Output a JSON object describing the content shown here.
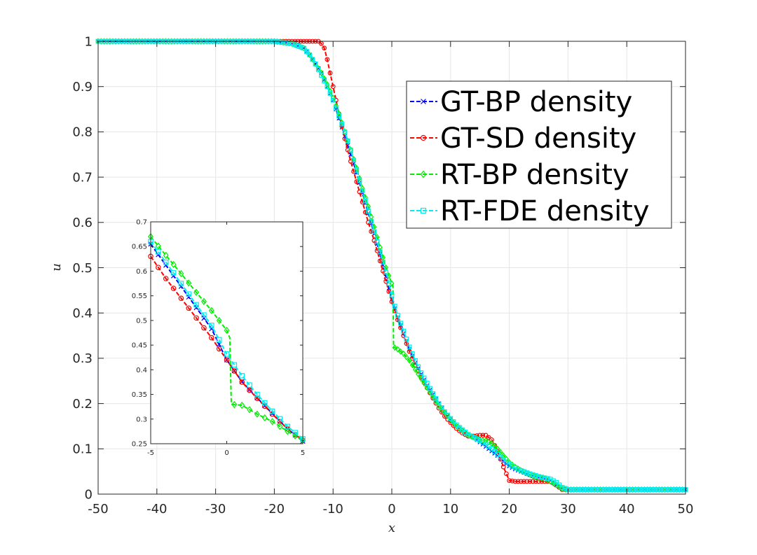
{
  "chart_data": [
    {
      "type": "line",
      "title": "",
      "xlabel": "x",
      "ylabel": "u",
      "xlim": [
        -50,
        50
      ],
      "ylim": [
        0,
        1
      ],
      "xticks": [
        -50,
        -40,
        -30,
        -20,
        -10,
        0,
        10,
        20,
        30,
        40,
        50
      ],
      "xtick_labels": [
        "-50",
        "-40",
        "-30",
        "-20",
        "-10",
        "0",
        "10",
        "20",
        "30",
        "40",
        "50"
      ],
      "yticks": [
        0,
        0.1,
        0.2,
        0.3,
        0.4,
        0.5,
        0.6,
        0.7,
        0.8,
        0.9,
        1
      ],
      "ytick_labels": [
        "0",
        "0.1",
        "0.2",
        "0.3",
        "0.4",
        "0.5",
        "0.6",
        "0.7",
        "0.8",
        "0.9",
        "1"
      ],
      "grid": true,
      "legend_position": "top-right",
      "series": [
        {
          "name": "GT-BP density",
          "color": "#0000ff",
          "marker": "x",
          "x": [
            -50,
            -20,
            -17,
            -15,
            -14,
            -13,
            -12,
            -11,
            -10,
            -9,
            -8,
            -7,
            -6,
            -5,
            -4,
            -3,
            -2,
            -1,
            0,
            0.5,
            1,
            2,
            3,
            4,
            5,
            6,
            7,
            8,
            9,
            10,
            11,
            12,
            13,
            14,
            15,
            16,
            17,
            18,
            19,
            20,
            21,
            22,
            23,
            24,
            25,
            26,
            27,
            28,
            29,
            30,
            35,
            40,
            45,
            50
          ],
          "y": [
            1,
            1,
            0.995,
            0.985,
            0.97,
            0.95,
            0.93,
            0.9,
            0.87,
            0.83,
            0.79,
            0.75,
            0.71,
            0.665,
            0.62,
            0.575,
            0.53,
            0.48,
            0.43,
            0.41,
            0.39,
            0.355,
            0.32,
            0.29,
            0.265,
            0.24,
            0.22,
            0.2,
            0.18,
            0.165,
            0.15,
            0.14,
            0.13,
            0.125,
            0.115,
            0.105,
            0.095,
            0.085,
            0.072,
            0.062,
            0.055,
            0.05,
            0.045,
            0.04,
            0.037,
            0.034,
            0.03,
            0.02,
            0.012,
            0.01,
            0.01,
            0.01,
            0.01,
            0.01
          ]
        },
        {
          "name": "GT-SD density",
          "color": "#ff0000",
          "marker": "o",
          "x": [
            -50,
            -15,
            -13,
            -12.5,
            -12,
            -11.5,
            -11,
            -10.5,
            -10,
            -9,
            -8,
            -7,
            -6,
            -5,
            -4,
            -3,
            -2,
            -1,
            0,
            0.5,
            1,
            2,
            3,
            4,
            5,
            6,
            7,
            8,
            9,
            10,
            11,
            12,
            13,
            14,
            15,
            16,
            17,
            18,
            19,
            20,
            21,
            22,
            23,
            24,
            25,
            26,
            27,
            28,
            29,
            30,
            35,
            40,
            45,
            50
          ],
          "y": [
            1,
            1,
            1,
            1,
            0.995,
            0.985,
            0.96,
            0.93,
            0.9,
            0.84,
            0.785,
            0.735,
            0.69,
            0.645,
            0.6,
            0.56,
            0.515,
            0.47,
            0.425,
            0.405,
            0.385,
            0.35,
            0.315,
            0.285,
            0.258,
            0.235,
            0.212,
            0.19,
            0.172,
            0.158,
            0.145,
            0.135,
            0.128,
            0.128,
            0.13,
            0.13,
            0.12,
            0.095,
            0.06,
            0.03,
            0.028,
            0.028,
            0.028,
            0.028,
            0.028,
            0.028,
            0.028,
            0.02,
            0.01,
            0.01,
            0.01,
            0.01,
            0.01,
            0.01
          ]
        },
        {
          "name": "RT-BP density",
          "color": "#00ee00",
          "marker": "diamond",
          "x": [
            -50,
            -20,
            -17,
            -15,
            -14,
            -13,
            -12,
            -11,
            -10,
            -9,
            -8,
            -7,
            -6,
            -5,
            -4,
            -3,
            -2,
            -1,
            0,
            0.2,
            0.3,
            1,
            2,
            3,
            4,
            5,
            6,
            7,
            8,
            9,
            10,
            11,
            12,
            13,
            14,
            15,
            16,
            17,
            18,
            19,
            20,
            21,
            22,
            23,
            24,
            25,
            26,
            27,
            28,
            29,
            30,
            35,
            40,
            45,
            50
          ],
          "y": [
            1,
            1,
            0.995,
            0.985,
            0.97,
            0.95,
            0.93,
            0.905,
            0.875,
            0.84,
            0.8,
            0.76,
            0.72,
            0.675,
            0.635,
            0.59,
            0.545,
            0.5,
            0.465,
            0.46,
            0.325,
            0.32,
            0.31,
            0.295,
            0.275,
            0.255,
            0.235,
            0.215,
            0.195,
            0.18,
            0.165,
            0.15,
            0.14,
            0.13,
            0.125,
            0.12,
            0.118,
            0.112,
            0.1,
            0.085,
            0.07,
            0.06,
            0.052,
            0.046,
            0.04,
            0.036,
            0.033,
            0.028,
            0.02,
            0.012,
            0.01,
            0.01,
            0.01,
            0.01,
            0.01
          ]
        },
        {
          "name": "RT-FDE density",
          "color": "#00eeee",
          "marker": "square",
          "x": [
            -50,
            -20,
            -17,
            -15,
            -14,
            -13,
            -12,
            -11,
            -10,
            -9,
            -8,
            -7,
            -6,
            -5,
            -4,
            -3,
            -2,
            -1,
            0,
            0.5,
            1,
            2,
            3,
            4,
            5,
            6,
            7,
            8,
            9,
            10,
            11,
            12,
            13,
            14,
            15,
            16,
            17,
            18,
            19,
            20,
            21,
            22,
            23,
            24,
            25,
            26,
            27,
            28,
            29,
            30,
            35,
            40,
            45,
            50
          ],
          "y": [
            1,
            1,
            0.995,
            0.985,
            0.97,
            0.95,
            0.925,
            0.9,
            0.87,
            0.835,
            0.8,
            0.76,
            0.715,
            0.67,
            0.625,
            0.58,
            0.535,
            0.49,
            0.44,
            0.415,
            0.395,
            0.36,
            0.325,
            0.295,
            0.268,
            0.245,
            0.222,
            0.2,
            0.182,
            0.167,
            0.153,
            0.142,
            0.132,
            0.125,
            0.118,
            0.11,
            0.1,
            0.088,
            0.076,
            0.066,
            0.058,
            0.052,
            0.047,
            0.043,
            0.039,
            0.036,
            0.033,
            0.026,
            0.015,
            0.01,
            0.01,
            0.01,
            0.01,
            0.01
          ]
        }
      ]
    },
    {
      "type": "line",
      "title": "",
      "inset": true,
      "xlim": [
        -5,
        5
      ],
      "ylim": [
        0.25,
        0.7
      ],
      "xticks": [
        -5,
        0,
        5
      ],
      "xtick_labels": [
        "-5",
        "0",
        "5"
      ],
      "yticks": [
        0.25,
        0.3,
        0.35,
        0.4,
        0.45,
        0.5,
        0.55,
        0.6,
        0.65,
        0.7
      ],
      "ytick_labels": [
        "0.25",
        "0.3",
        "0.35",
        "0.4",
        "0.45",
        "0.5",
        "0.55",
        "0.6",
        "0.65",
        "0.7"
      ],
      "grid": false,
      "series": [
        {
          "name": "GT-BP density",
          "color": "#0000ff",
          "marker": "x",
          "x": [
            -5,
            -4,
            -3,
            -2,
            -1,
            0,
            1,
            2,
            3,
            4,
            5
          ],
          "y": [
            0.655,
            0.612,
            0.569,
            0.526,
            0.483,
            0.42,
            0.376,
            0.343,
            0.311,
            0.28,
            0.255
          ]
        },
        {
          "name": "GT-SD density",
          "color": "#ff0000",
          "marker": "o",
          "x": [
            -5,
            -4,
            -3,
            -2,
            -1,
            0,
            1,
            2,
            3,
            4,
            5
          ],
          "y": [
            0.63,
            0.585,
            0.545,
            0.505,
            0.465,
            0.42,
            0.375,
            0.342,
            0.31,
            0.28,
            0.257
          ]
        },
        {
          "name": "RT-BP density",
          "color": "#00ee00",
          "marker": "diamond",
          "x": [
            -5,
            -4,
            -3,
            -2,
            -1,
            0,
            0.2,
            0.3,
            1,
            2,
            3,
            4,
            5
          ],
          "y": [
            0.67,
            0.632,
            0.595,
            0.557,
            0.52,
            0.48,
            0.465,
            0.33,
            0.328,
            0.31,
            0.295,
            0.275,
            0.257
          ]
        },
        {
          "name": "RT-FDE density",
          "color": "#00eeee",
          "marker": "square",
          "x": [
            -5,
            -4,
            -3,
            -2,
            -1,
            0,
            1,
            2,
            3,
            4,
            5
          ],
          "y": [
            0.66,
            0.618,
            0.575,
            0.532,
            0.49,
            0.432,
            0.388,
            0.35,
            0.316,
            0.285,
            0.26
          ]
        }
      ]
    }
  ]
}
